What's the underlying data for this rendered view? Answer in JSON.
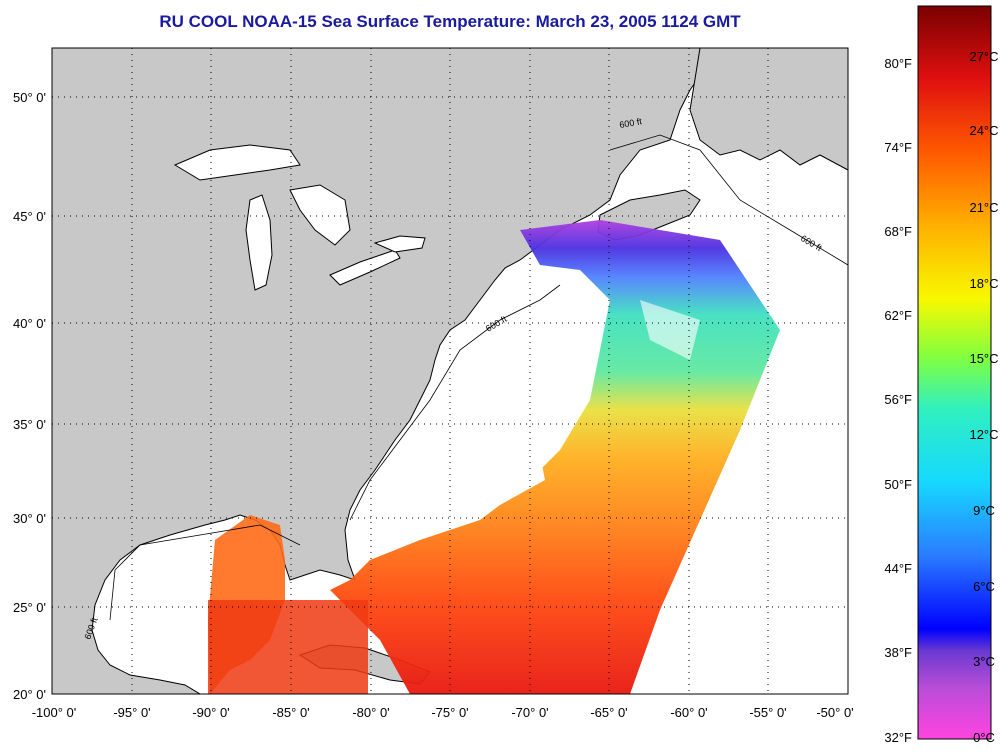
{
  "title": "RU COOL  NOAA-15  Sea Surface Temperature:  March 23, 2005 1124 GMT",
  "x_ticks": [
    "-100° 0'",
    "-95° 0'",
    "-90° 0'",
    "-85° 0'",
    "-80° 0'",
    "-75° 0'",
    "-70° 0'",
    "-65° 0'",
    "-60° 0'",
    "-55° 0'",
    "-50° 0'"
  ],
  "y_ticks": [
    "50° 0'",
    "45° 0'",
    "40° 0'",
    "35° 0'",
    "30° 0'",
    "25° 0'",
    "20° 0'"
  ],
  "colorbar": {
    "fahrenheit": [
      "80°F",
      "74°F",
      "68°F",
      "62°F",
      "56°F",
      "50°F",
      "44°F",
      "38°F",
      "32°F"
    ],
    "celsius": [
      "27°C",
      "24°C",
      "21°C",
      "18°C",
      "15°C",
      "12°C",
      "9°C",
      "6°C",
      "3°C",
      "0°C"
    ]
  },
  "contour_label": "600 ft",
  "colors": {
    "land": "#c8c8c8",
    "water": "#ffffff",
    "title": "#1a1aa0"
  }
}
